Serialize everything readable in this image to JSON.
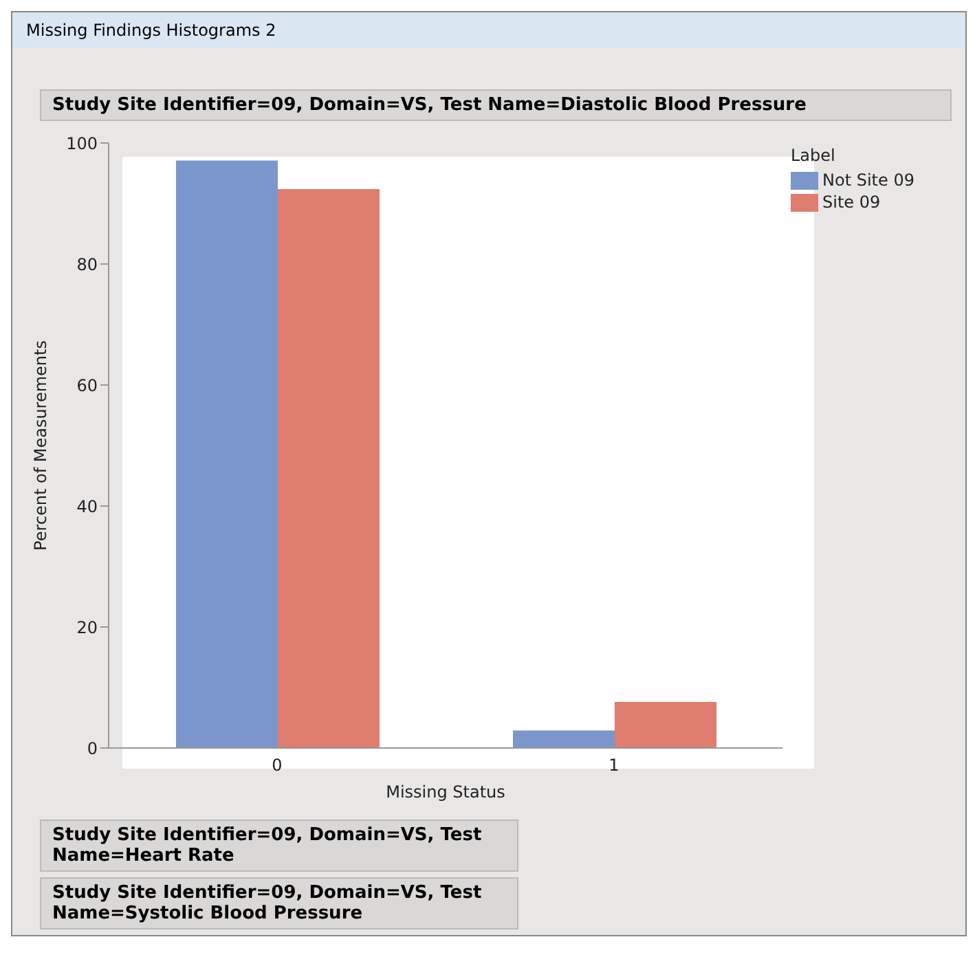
{
  "chart_data": {
    "type": "bar",
    "title": "Study Site Identifier=09, Domain=VS, Test Name=Diastolic Blood Pressure",
    "xlabel": "Missing Status",
    "ylabel": "Percent of Measurements",
    "legend_title": "Label",
    "categories": [
      "0",
      "1"
    ],
    "series": [
      {
        "name": "Not Site 09",
        "color": "#7b96cb",
        "values": [
          97.1,
          2.9
        ]
      },
      {
        "name": "Site 09",
        "color": "#df7e6f",
        "values": [
          92.4,
          7.6
        ]
      }
    ],
    "ylim": [
      0,
      100
    ],
    "yticks": [
      0,
      20,
      40,
      60,
      80,
      100
    ],
    "grid": false,
    "legend": "top right",
    "annotations": [
      "Missing Findings Histograms 2",
      "Study Site Identifier=09, Domain=VS, Test Name=Heart Rate",
      "Study Site Identifier=09, Domain=VS, Test Name=Systolic Blood Pressure"
    ]
  }
}
